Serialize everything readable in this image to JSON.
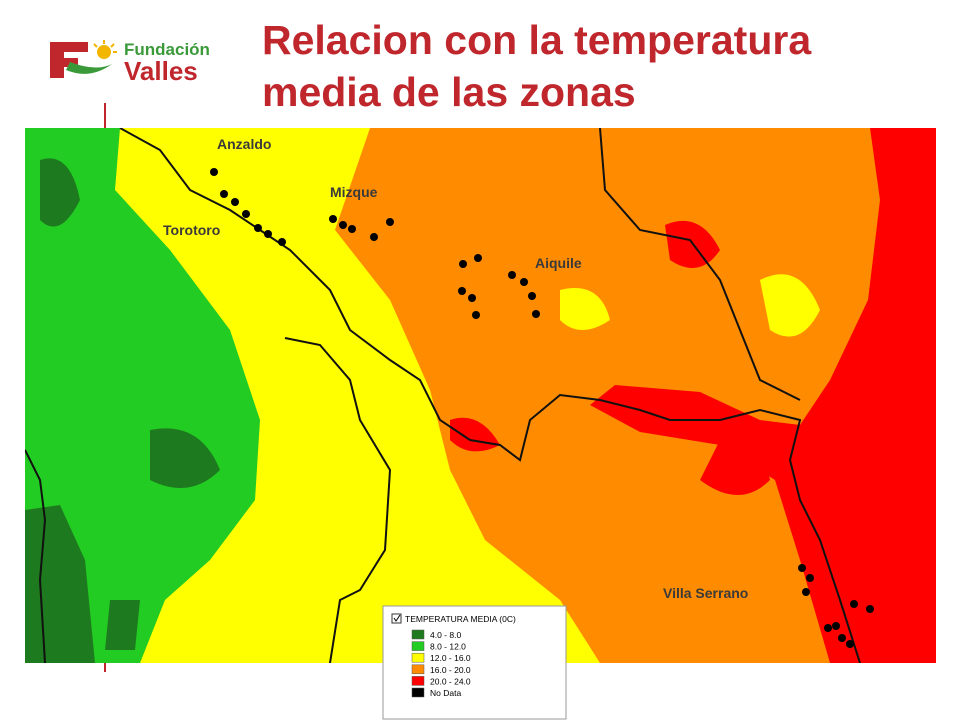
{
  "logo": {
    "line1": "Fundación",
    "line2": "Valles"
  },
  "title": {
    "line1": "Relacion con la temperatura",
    "line2": "media de las zonas"
  },
  "places": [
    "Anzaldo",
    "Mizque",
    "Torotoro",
    "Aiquile",
    "Villa Serrano"
  ],
  "legend": {
    "title": "TEMPERATURA MEDIA (0C)",
    "entries": [
      {
        "label": "4.0 - 8.0",
        "color": "#1e7a1e"
      },
      {
        "label": "8.0 - 12.0",
        "color": "#22cc22"
      },
      {
        "label": "12.0 - 16.0",
        "color": "#ffff00"
      },
      {
        "label": "16.0 - 20.0",
        "color": "#ff8c00"
      },
      {
        "label": "20.0 - 24.0",
        "color": "#ff0000"
      },
      {
        "label": "No Data",
        "color": "#000000"
      }
    ]
  }
}
